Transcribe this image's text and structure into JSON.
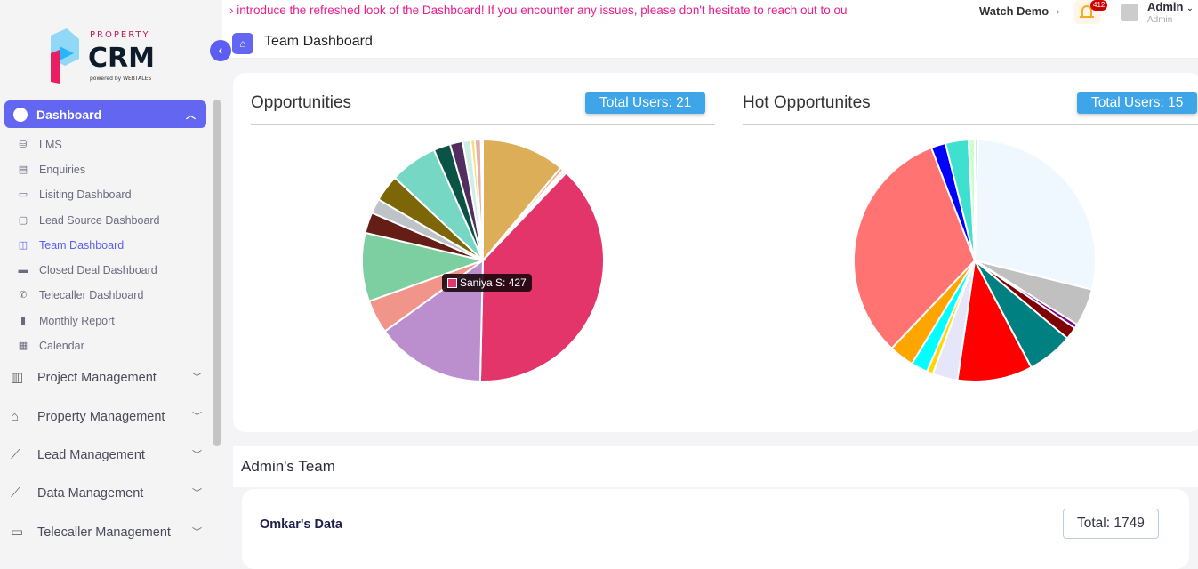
{
  "brand": {
    "logo_text": "PROPERTY CRM",
    "powered": "powered by WEBTALES"
  },
  "sidebar": {
    "active": {
      "label": "Dashboard",
      "icon": "pie-icon"
    },
    "sub_items": [
      {
        "label": "LMS",
        "icon": "database-icon"
      },
      {
        "label": "Enquiries",
        "icon": "file-icon"
      },
      {
        "label": "Lisiting Dashboard",
        "icon": "monitor-icon"
      },
      {
        "label": "Lead Source Dashboard",
        "icon": "tv-icon"
      },
      {
        "label": "Team Dashboard",
        "icon": "cast-icon",
        "active": true
      },
      {
        "label": "Closed Deal Dashboard",
        "icon": "desktop-icon"
      },
      {
        "label": "Telecaller Dashboard",
        "icon": "phone-icon"
      },
      {
        "label": "Monthly Report",
        "icon": "document-icon"
      },
      {
        "label": "Calendar",
        "icon": "calendar-icon"
      }
    ],
    "groups": [
      {
        "label": "Project Management",
        "icon": "building-icon"
      },
      {
        "label": "Property Management",
        "icon": "house-icon"
      },
      {
        "label": "Lead Management",
        "icon": "chart-line-icon"
      },
      {
        "label": "Data Management",
        "icon": "chart-line-icon"
      },
      {
        "label": "Telecaller Management",
        "icon": "chat-icon"
      }
    ]
  },
  "topbar": {
    "announcement": "› introduce the refreshed look of the Dashboard! If you encounter any issues, please don't hesitate to reach out to ou",
    "watch_demo": "Watch Demo",
    "notifications": "412",
    "user_name": "Admin",
    "user_role": "Admin"
  },
  "header": {
    "title": "Team Dashboard"
  },
  "accent": "#6366f1",
  "chart_data": [
    {
      "type": "pie",
      "title": "Opportunities",
      "total_label": "Total Users: 21",
      "tooltip": "Saniya S: 427",
      "values": [
        124,
        5,
        3,
        3,
        427,
        164,
        50,
        102,
        31,
        22,
        40,
        71,
        25,
        19,
        12,
        6,
        9,
        3
      ],
      "colors": [
        "#dcae57",
        "#f4a582",
        "#7fc97f",
        "#5aa9e6",
        "#e4356a",
        "#bb8fce",
        "#f1948a",
        "#7dcea0",
        "#641e16",
        "#bdc3c7",
        "#7d6608",
        "#76d7c4",
        "#0b5345",
        "#512e5f",
        "#d0ece7",
        "#f7dc6f",
        "#e6b0aa",
        "#fadbd8"
      ]
    },
    {
      "type": "pie",
      "title": "Hot Opportunites",
      "total_label": "Total Users: 15",
      "values": [
        1.5,
        102,
        18,
        2,
        6,
        22,
        36,
        12,
        3,
        8,
        12,
        115,
        7,
        11,
        3
      ],
      "colors": [
        "#cce5ff",
        "#f0f8ff",
        "#c0c0c0",
        "#800080",
        "#800000",
        "#008080",
        "#ff0000",
        "#e6e6fa",
        "#ffd700",
        "#00ffff",
        "#ffa500",
        "#ff7373",
        "#0000ff",
        "#40e0d0",
        "#ccffcc"
      ]
    }
  ],
  "team": {
    "heading": "Admin's Team",
    "member": "Omkar's Data",
    "total": "Total: 1749"
  }
}
